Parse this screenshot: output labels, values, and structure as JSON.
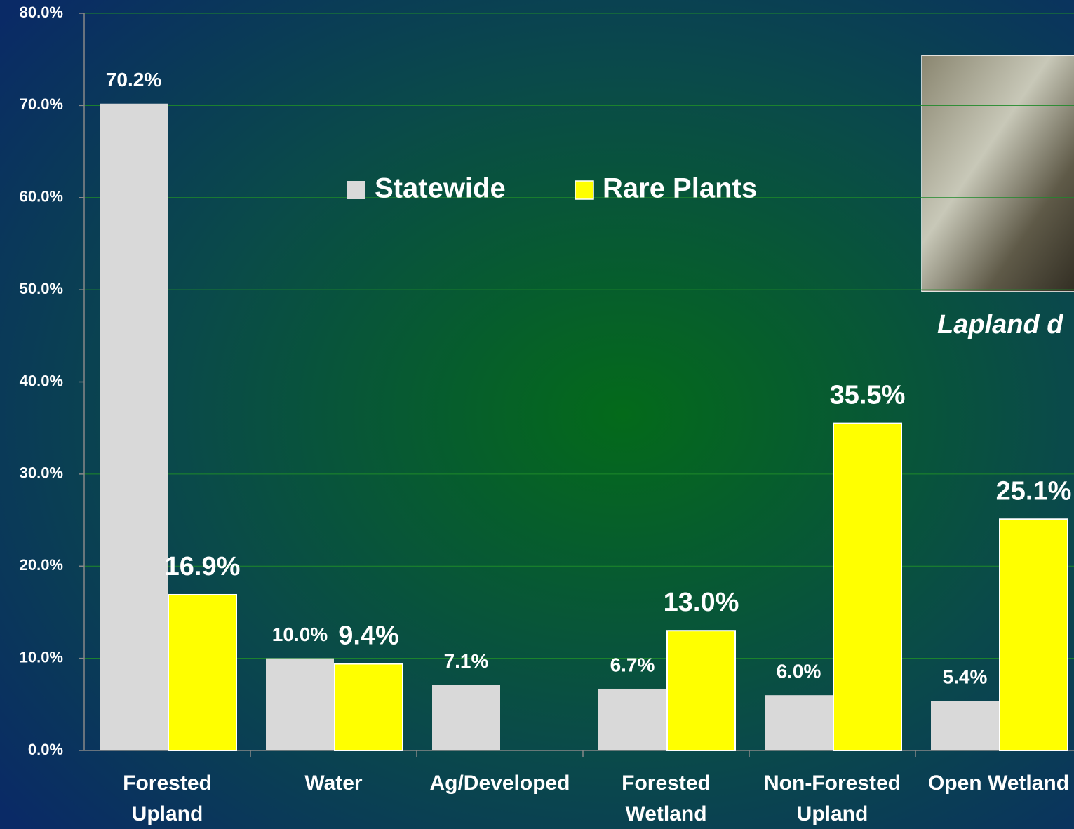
{
  "chart_data": {
    "type": "bar",
    "categories": [
      "Forested\nUpland",
      "Water",
      "Ag/Developed",
      "Forested\nWetland",
      "Non-Forested\nUpland",
      "Open Wetland"
    ],
    "series": [
      {
        "name": "Statewide",
        "color": "#d9d9d9",
        "values": [
          70.2,
          10.0,
          7.1,
          6.7,
          6.0,
          5.4
        ],
        "value_labels": [
          "70.2%",
          "10.0%",
          "7.1%",
          "6.7%",
          "6.0%",
          "5.4%"
        ]
      },
      {
        "name": "Rare Plants",
        "color": "#ffff00",
        "values": [
          16.9,
          9.4,
          null,
          13.0,
          35.5,
          25.1
        ],
        "value_labels": [
          "16.9%",
          "9.4%",
          null,
          "13.0%",
          "35.5%",
          "25.1%"
        ]
      }
    ],
    "ylim": [
      0,
      80
    ],
    "yticks": [
      {
        "value": 0,
        "label": "0.0%"
      },
      {
        "value": 10,
        "label": "10.0%"
      },
      {
        "value": 20,
        "label": "20.0%"
      },
      {
        "value": 30,
        "label": "30.0%"
      },
      {
        "value": 40,
        "label": "40.0%"
      },
      {
        "value": 50,
        "label": "50.0%"
      },
      {
        "value": 60,
        "label": "60.0%"
      },
      {
        "value": 70,
        "label": "70.0%"
      },
      {
        "value": 80,
        "label": "80.0%"
      }
    ],
    "grid": true,
    "caption": "Lapland d"
  }
}
